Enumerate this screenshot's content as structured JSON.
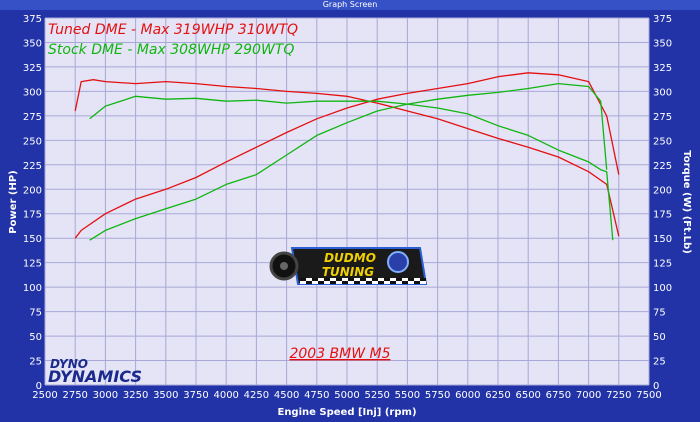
{
  "window": {
    "title": "Graph Screen"
  },
  "chart_data": {
    "type": "line",
    "xlabel": "Engine Speed [Inj] (rpm)",
    "ylabel": "Power (HP)",
    "y2label": "Torque (W) (Ft.Lb)",
    "xlim": [
      2500,
      7500
    ],
    "ylim": [
      0,
      375
    ],
    "y2lim": [
      0,
      375
    ],
    "x_ticks": [
      2500,
      2750,
      3000,
      3250,
      3500,
      3750,
      4000,
      4250,
      4500,
      4750,
      5000,
      5250,
      5500,
      5750,
      6000,
      6250,
      6500,
      6750,
      7000,
      7250,
      7500
    ],
    "y_ticks": [
      0,
      25,
      50,
      75,
      100,
      125,
      150,
      175,
      200,
      225,
      250,
      275,
      300,
      325,
      350,
      375
    ],
    "grid": true,
    "legend": [
      {
        "text": "Tuned DME - Max 319WHP 310WTQ",
        "color": "#e41010"
      },
      {
        "text": "Stock DME - Max 308WHP 290WTQ",
        "color": "#11b511"
      }
    ],
    "annotation": "2003 BMW M5",
    "logos": {
      "dyno_top": "DYNO",
      "dyno_bottom": "DYNAMICS",
      "tuner_top": "DUDMO",
      "tuner_bottom": "TUNING"
    },
    "series": [
      {
        "name": "Tuned DME",
        "measure": "power",
        "color": "#e41010",
        "x": [
          2750,
          2800,
          3000,
          3250,
          3500,
          3750,
          4000,
          4250,
          4500,
          4750,
          5000,
          5250,
          5500,
          5750,
          6000,
          6250,
          6500,
          6750,
          7000,
          7150,
          7250
        ],
        "y": [
          150,
          158,
          175,
          190,
          200,
          212,
          228,
          243,
          258,
          272,
          283,
          292,
          298,
          303,
          308,
          315,
          319,
          317,
          310,
          275,
          215
        ]
      },
      {
        "name": "Tuned DME",
        "measure": "torque",
        "color": "#e41010",
        "x": [
          2750,
          2800,
          2900,
          3000,
          3250,
          3500,
          3750,
          4000,
          4250,
          4500,
          4750,
          5000,
          5250,
          5500,
          5750,
          6000,
          6250,
          6500,
          6750,
          7000,
          7150,
          7250
        ],
        "y": [
          280,
          310,
          312,
          310,
          308,
          310,
          308,
          305,
          303,
          300,
          298,
          295,
          288,
          280,
          272,
          262,
          252,
          243,
          233,
          218,
          205,
          152
        ]
      },
      {
        "name": "Stock DME",
        "measure": "power",
        "color": "#11b511",
        "x": [
          2870,
          3000,
          3250,
          3500,
          3750,
          4000,
          4250,
          4500,
          4750,
          5000,
          5250,
          5500,
          5750,
          6000,
          6250,
          6500,
          6750,
          7000,
          7100,
          7150
        ],
        "y": [
          148,
          158,
          170,
          180,
          190,
          205,
          215,
          235,
          255,
          268,
          280,
          287,
          292,
          296,
          299,
          303,
          308,
          305,
          290,
          220
        ]
      },
      {
        "name": "Stock DME",
        "measure": "torque",
        "color": "#11b511",
        "x": [
          2870,
          3000,
          3250,
          3500,
          3750,
          4000,
          4250,
          4500,
          4750,
          5000,
          5250,
          5500,
          5750,
          6000,
          6250,
          6500,
          6750,
          7000,
          7100,
          7150,
          7200
        ],
        "y": [
          272,
          285,
          295,
          292,
          293,
          290,
          291,
          288,
          290,
          290,
          290,
          287,
          283,
          277,
          265,
          255,
          240,
          228,
          220,
          218,
          148
        ]
      }
    ]
  }
}
